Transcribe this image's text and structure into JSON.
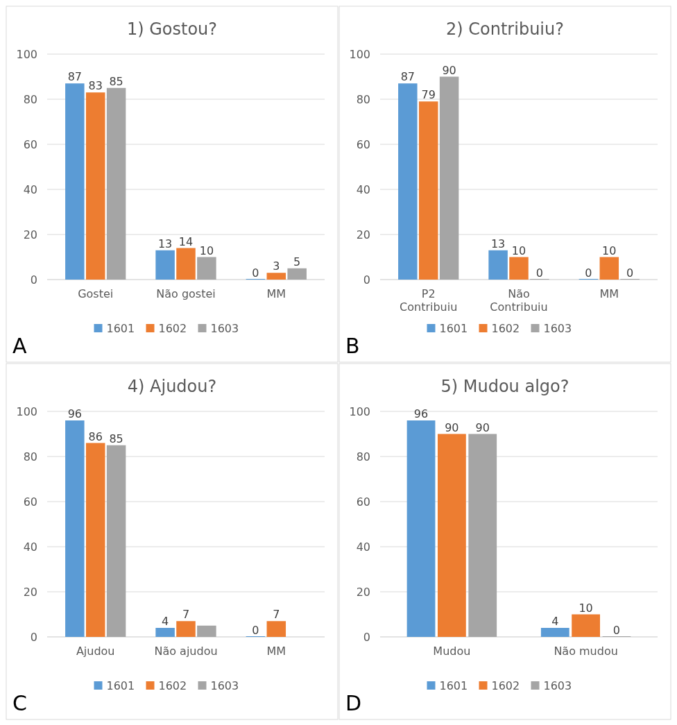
{
  "chart_data": [
    {
      "type": "bar",
      "title": "1) Gostou?",
      "categories": [
        "Gostei",
        "Não gostei",
        "MM"
      ],
      "ylim": [
        0,
        100
      ],
      "yticks": [
        0,
        20,
        40,
        60,
        80,
        100
      ],
      "grid": "y",
      "legend": "bottom",
      "data_labels": true,
      "annotations": [
        "A"
      ],
      "series": [
        {
          "name": "1601",
          "color": "#5b9bd5",
          "values": [
            87,
            13,
            0
          ]
        },
        {
          "name": "1602",
          "color": "#ed7d31",
          "values": [
            83,
            14,
            3
          ]
        },
        {
          "name": "1603",
          "color": "#a5a5a5",
          "values": [
            85,
            10,
            5
          ]
        }
      ]
    },
    {
      "type": "bar",
      "title": "2) Contribuiu?",
      "categories": [
        "P2 Contribuiu",
        "Não Contribuiu",
        "MM"
      ],
      "ylim": [
        0,
        100
      ],
      "yticks": [
        0,
        20,
        40,
        60,
        80,
        100
      ],
      "grid": "y",
      "legend": "bottom",
      "data_labels": true,
      "annotations": [
        "B"
      ],
      "series": [
        {
          "name": "1601",
          "color": "#5b9bd5",
          "values": [
            87,
            13,
            0
          ]
        },
        {
          "name": "1602",
          "color": "#ed7d31",
          "values": [
            79,
            10,
            10
          ]
        },
        {
          "name": "1603",
          "color": "#a5a5a5",
          "values": [
            90,
            0,
            0
          ]
        }
      ]
    },
    {
      "type": "bar",
      "title": "4) Ajudou?",
      "categories": [
        "Ajudou",
        "Não ajudou",
        "MM"
      ],
      "ylim": [
        0,
        100
      ],
      "yticks": [
        0,
        20,
        40,
        60,
        80,
        100
      ],
      "grid": "y",
      "legend": "bottom",
      "annotations": [
        "C"
      ],
      "series": [
        {
          "name": "1601",
          "color": "#5b9bd5",
          "values": [
            96,
            4,
            0
          ],
          "value_labels": [
            "96",
            "4",
            "0"
          ]
        },
        {
          "name": "1602",
          "color": "#ed7d31",
          "values": [
            86,
            7,
            7
          ],
          "value_labels": [
            "86",
            "7",
            "7"
          ]
        },
        {
          "name": "1603",
          "color": "#a5a5a5",
          "values": [
            85,
            5,
            null
          ],
          "value_labels": [
            "85",
            null,
            null
          ]
        }
      ]
    },
    {
      "type": "bar",
      "title": "5) Mudou algo?",
      "categories": [
        "Mudou",
        "Não mudou"
      ],
      "ylim": [
        0,
        100
      ],
      "yticks": [
        0,
        20,
        40,
        60,
        80,
        100
      ],
      "grid": "y",
      "legend": "bottom",
      "data_labels": true,
      "annotations": [
        "D"
      ],
      "series": [
        {
          "name": "1601",
          "color": "#5b9bd5",
          "values": [
            96,
            4
          ]
        },
        {
          "name": "1602",
          "color": "#ed7d31",
          "values": [
            90,
            10
          ]
        },
        {
          "name": "1603",
          "color": "#a5a5a5",
          "values": [
            90,
            0
          ]
        }
      ]
    }
  ]
}
